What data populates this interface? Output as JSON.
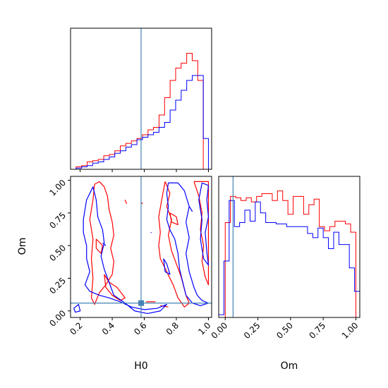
{
  "chart_data": {
    "type": "corner",
    "parameters": [
      "H0",
      "Om"
    ],
    "truth": {
      "H0": 0.58,
      "Om": 0.06
    },
    "truth_color": "#4682b4",
    "xlabel_h0": "H0",
    "xlabel_om": "Om",
    "ylabel_om": "Om",
    "h0_ticks": [
      0.2,
      0.4,
      0.6,
      0.8,
      1.0
    ],
    "h0_tick_labels": [
      "0.2",
      "0.4",
      "0.6",
      "0.8",
      "1.0"
    ],
    "om_ticks": [
      0.0,
      0.25,
      0.5,
      0.75,
      1.0
    ],
    "om_tick_labels": [
      "0.00",
      "0.25",
      "0.50",
      "0.75",
      "1.00"
    ],
    "h0_range": [
      0.14,
      1.02
    ],
    "om_range": [
      -0.05,
      1.03
    ],
    "series": [
      {
        "color": "#ff0000",
        "h0_hist": {
          "edges": [
            0.14,
            0.1745,
            0.209,
            0.2435,
            0.278,
            0.3125,
            0.347,
            0.3815,
            0.416,
            0.4505,
            0.485,
            0.5195,
            0.554,
            0.5885,
            0.623,
            0.6575,
            0.692,
            0.7265,
            0.761,
            0.7955,
            0.83,
            0.8645,
            0.899,
            0.9335,
            0.968,
            1.0
          ],
          "counts": [
            0.0,
            0.02,
            0.03,
            0.06,
            0.07,
            0.08,
            0.11,
            0.12,
            0.15,
            0.19,
            0.21,
            0.23,
            0.25,
            0.28,
            0.32,
            0.34,
            0.44,
            0.58,
            0.72,
            0.82,
            0.86,
            0.94,
            0.88,
            0.72,
            0.0
          ]
        },
        "om_hist": {
          "edges": [
            0.0,
            0.04,
            0.08,
            0.12,
            0.16,
            0.2,
            0.24,
            0.28,
            0.32,
            0.36,
            0.4,
            0.44,
            0.48,
            0.52,
            0.56,
            0.6,
            0.64,
            0.68,
            0.72,
            0.76,
            0.8,
            0.84,
            0.88,
            0.92,
            0.96,
            1.0
          ],
          "counts": [
            0.69,
            0.88,
            0.87,
            0.85,
            0.87,
            0.84,
            0.88,
            0.9,
            0.9,
            0.85,
            0.92,
            0.85,
            0.75,
            0.88,
            0.88,
            0.75,
            0.82,
            0.86,
            0.66,
            0.63,
            0.66,
            0.7,
            0.7,
            0.68,
            0.62
          ]
        },
        "contours": [
          [
            [
              0.29,
              0.97
            ],
            [
              0.32,
              0.99
            ],
            [
              0.35,
              0.95
            ],
            [
              0.37,
              0.88
            ],
            [
              0.38,
              0.78
            ],
            [
              0.4,
              0.68
            ],
            [
              0.41,
              0.58
            ],
            [
              0.39,
              0.48
            ],
            [
              0.41,
              0.38
            ],
            [
              0.4,
              0.28
            ],
            [
              0.36,
              0.2
            ],
            [
              0.32,
              0.14
            ],
            [
              0.29,
              0.05
            ],
            [
              0.27,
              0.1
            ],
            [
              0.28,
              0.25
            ],
            [
              0.27,
              0.4
            ],
            [
              0.28,
              0.55
            ],
            [
              0.26,
              0.7
            ],
            [
              0.28,
              0.85
            ],
            [
              0.29,
              0.97
            ]
          ],
          [
            [
              0.35,
              0.28
            ],
            [
              0.38,
              0.22
            ],
            [
              0.43,
              0.18
            ],
            [
              0.48,
              0.1
            ],
            [
              0.45,
              0.08
            ],
            [
              0.4,
              0.12
            ],
            [
              0.36,
              0.18
            ],
            [
              0.35,
              0.28
            ]
          ],
          [
            [
              0.73,
              0.99
            ],
            [
              0.76,
              0.9
            ],
            [
              0.74,
              0.8
            ],
            [
              0.77,
              0.7
            ],
            [
              0.75,
              0.58
            ],
            [
              0.77,
              0.46
            ],
            [
              0.8,
              0.36
            ],
            [
              0.83,
              0.26
            ],
            [
              0.86,
              0.12
            ],
            [
              0.88,
              0.06
            ],
            [
              0.85,
              0.03
            ],
            [
              0.81,
              0.1
            ],
            [
              0.78,
              0.2
            ],
            [
              0.74,
              0.3
            ],
            [
              0.7,
              0.4
            ],
            [
              0.69,
              0.5
            ],
            [
              0.7,
              0.6
            ],
            [
              0.69,
              0.72
            ],
            [
              0.71,
              0.86
            ],
            [
              0.73,
              0.99
            ]
          ],
          [
            [
              0.91,
              0.99
            ],
            [
              0.94,
              0.88
            ],
            [
              0.96,
              0.75
            ],
            [
              0.95,
              0.62
            ],
            [
              0.97,
              0.5
            ],
            [
              0.96,
              0.38
            ],
            [
              0.98,
              0.26
            ],
            [
              1.0,
              0.2
            ],
            [
              1.0,
              0.99
            ],
            [
              0.91,
              0.99
            ]
          ],
          [
            [
              0.3,
              0.55
            ],
            [
              0.34,
              0.5
            ],
            [
              0.33,
              0.44
            ],
            [
              0.3,
              0.48
            ],
            [
              0.3,
              0.55
            ]
          ],
          [
            [
              0.76,
              0.75
            ],
            [
              0.8,
              0.72
            ],
            [
              0.81,
              0.66
            ],
            [
              0.77,
              0.68
            ],
            [
              0.76,
              0.75
            ]
          ],
          [
            [
              0.61,
              0.07
            ],
            [
              0.67,
              0.07
            ]
          ],
          [
            [
              0.48,
              0.85
            ],
            [
              0.49,
              0.82
            ]
          ],
          [
            [
              0.58,
              0.83
            ],
            [
              0.59,
              0.82
            ]
          ],
          [
            [
              0.7,
              0.04
            ],
            [
              0.75,
              0.03
            ]
          ]
        ]
      },
      {
        "color": "#0000ff",
        "h0_hist": {
          "edges": [
            0.14,
            0.1745,
            0.209,
            0.2435,
            0.278,
            0.3125,
            0.347,
            0.3815,
            0.416,
            0.4505,
            0.485,
            0.5195,
            0.554,
            0.5885,
            0.623,
            0.6575,
            0.692,
            0.7265,
            0.761,
            0.7955,
            0.83,
            0.8645,
            0.899,
            0.9335,
            0.968,
            1.0
          ],
          "counts": [
            0.0,
            0.01,
            0.02,
            0.03,
            0.05,
            0.06,
            0.08,
            0.1,
            0.13,
            0.15,
            0.18,
            0.2,
            0.24,
            0.26,
            0.28,
            0.3,
            0.34,
            0.38,
            0.48,
            0.56,
            0.64,
            0.72,
            0.76,
            0.76,
            0.25
          ]
        },
        "om_hist": {
          "edges": [
            -0.05,
            -0.01,
            0.03,
            0.07,
            0.11,
            0.15,
            0.19,
            0.23,
            0.27,
            0.31,
            0.35,
            0.39,
            0.43,
            0.47,
            0.51,
            0.55,
            0.59,
            0.63,
            0.67,
            0.71,
            0.75,
            0.79,
            0.83,
            0.87,
            0.91,
            0.95,
            0.99,
            1.03
          ],
          "counts": [
            0.02,
            0.41,
            0.85,
            0.66,
            0.69,
            0.78,
            0.7,
            0.84,
            0.76,
            0.69,
            0.69,
            0.68,
            0.68,
            0.66,
            0.66,
            0.66,
            0.66,
            0.61,
            0.58,
            0.65,
            0.58,
            0.5,
            0.62,
            0.53,
            0.53,
            0.36,
            0.19
          ]
        },
        "contours": [
          [
            [
              0.22,
              0.7
            ],
            [
              0.24,
              0.85
            ],
            [
              0.28,
              0.95
            ],
            [
              0.3,
              0.85
            ],
            [
              0.31,
              0.72
            ],
            [
              0.34,
              0.62
            ],
            [
              0.35,
              0.52
            ],
            [
              0.33,
              0.42
            ],
            [
              0.35,
              0.32
            ],
            [
              0.38,
              0.22
            ],
            [
              0.41,
              0.12
            ],
            [
              0.48,
              0.06
            ],
            [
              0.54,
              0.0
            ],
            [
              0.62,
              -0.02
            ],
            [
              0.7,
              0.0
            ],
            [
              0.74,
              0.05
            ],
            [
              0.68,
              0.02
            ],
            [
              0.6,
              0.01
            ],
            [
              0.52,
              0.03
            ],
            [
              0.45,
              0.07
            ],
            [
              0.38,
              0.1
            ],
            [
              0.32,
              0.12
            ],
            [
              0.26,
              0.15
            ],
            [
              0.23,
              0.2
            ],
            [
              0.26,
              0.3
            ],
            [
              0.24,
              0.4
            ],
            [
              0.24,
              0.5
            ],
            [
              0.22,
              0.6
            ],
            [
              0.22,
              0.7
            ]
          ],
          [
            [
              0.75,
              0.98
            ],
            [
              0.81,
              0.98
            ],
            [
              0.85,
              0.92
            ],
            [
              0.88,
              0.8
            ],
            [
              0.86,
              0.68
            ],
            [
              0.88,
              0.56
            ],
            [
              0.86,
              0.44
            ],
            [
              0.88,
              0.3
            ],
            [
              0.91,
              0.18
            ],
            [
              0.93,
              0.12
            ],
            [
              0.96,
              0.08
            ],
            [
              1.0,
              0.06
            ],
            [
              0.95,
              0.04
            ],
            [
              0.9,
              0.06
            ],
            [
              0.86,
              0.12
            ],
            [
              0.84,
              0.22
            ],
            [
              0.82,
              0.32
            ],
            [
              0.81,
              0.44
            ],
            [
              0.79,
              0.55
            ],
            [
              0.76,
              0.62
            ],
            [
              0.74,
              0.7
            ],
            [
              0.75,
              0.8
            ],
            [
              0.74,
              0.9
            ],
            [
              0.75,
              0.98
            ]
          ],
          [
            [
              0.96,
              0.98
            ],
            [
              1.0,
              0.96
            ],
            [
              0.99,
              0.85
            ],
            [
              1.0,
              0.72
            ],
            [
              0.98,
              0.6
            ],
            [
              0.99,
              0.45
            ],
            [
              1.0,
              0.35
            ],
            [
              0.97,
              0.4
            ],
            [
              0.95,
              0.55
            ],
            [
              0.96,
              0.7
            ],
            [
              0.94,
              0.85
            ],
            [
              0.96,
              0.98
            ]
          ],
          [
            [
              0.72,
              0.4
            ],
            [
              0.74,
              0.36
            ],
            [
              0.76,
              0.28
            ],
            [
              0.73,
              0.3
            ],
            [
              0.72,
              0.4
            ]
          ],
          [
            [
              0.16,
              0.02
            ],
            [
              0.19,
              0.05
            ],
            [
              0.2,
              0.0
            ],
            [
              0.17,
              -0.01
            ],
            [
              0.16,
              0.02
            ]
          ],
          [
            [
              0.34,
              0.52
            ],
            [
              0.36,
              0.5
            ]
          ],
          [
            [
              0.64,
              0.6
            ],
            [
              0.645,
              0.6
            ]
          ],
          [
            [
              0.88,
              0.8
            ],
            [
              0.9,
              0.76
            ]
          ]
        ]
      }
    ]
  }
}
